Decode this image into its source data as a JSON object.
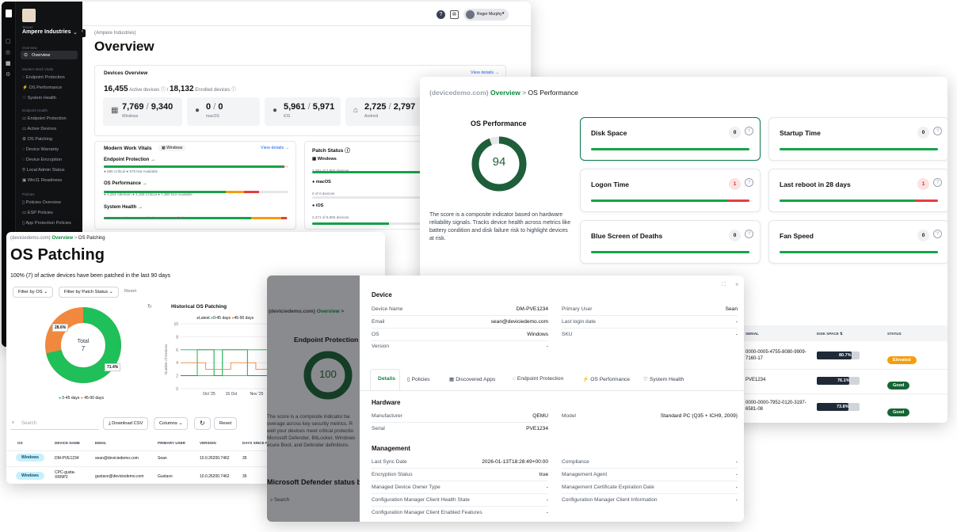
{
  "w1": {
    "tenant_label": "Tenant",
    "tenant": "Ampere Industries",
    "section_overview": "Overview",
    "nav_overview": "Overview",
    "section_vitals": "Modern Work Vitals",
    "nav_vitals": [
      "Endpoint Protection",
      "OS Performance",
      "System Health"
    ],
    "section_health": "Endpoint Health",
    "nav_health": [
      "Endpoint Protection",
      "Active Devices",
      "OS Patching",
      "Device Warranty",
      "Device Encryption",
      "Local Admin Status",
      "Win11 Readiness"
    ],
    "section_policies": "Policies",
    "nav_policies": [
      "Policies Overview",
      "ESP Policies",
      "App Protection Policies"
    ],
    "user": "Roger Murphy",
    "crumb": "(Ampere Industries)",
    "title": "Overview",
    "devices_title": "Devices Overview",
    "view_details": "View details →",
    "active": "16,455",
    "active_label": "Active devices ⓘ /",
    "enrolled": "18,132",
    "enrolled_label": "Enrolled devices ⓘ",
    "stats": [
      {
        "icon": "windows-icon",
        "a": "7,769",
        "b": "9,340",
        "label": "Windows"
      },
      {
        "icon": "apple-icon",
        "a": "0",
        "b": "0",
        "label": "macOS"
      },
      {
        "icon": "apple-icon",
        "a": "5,961",
        "b": "5,971",
        "label": "iOS"
      },
      {
        "icon": "android-icon",
        "a": "2,725",
        "b": "2,797",
        "label": "Android"
      }
    ],
    "vitals_title": "Modern Work Vitals",
    "vitals_filter": "Windows",
    "vitals_details": "View details →",
    "vitals": [
      {
        "name": "Endpoint Protection →",
        "legend": "● 966 Critical  ● 575 Not Available"
      },
      {
        "name": "OS Performance →",
        "legend": "● 4,264 Attention  ● 3,168 Critical  ● 7,360 Not Available"
      },
      {
        "name": "System Health →",
        "legend": "● 2,821 Attention  ● 424 Critical  ● 207 Not Available"
      }
    ],
    "patch_title": "Patch Status ⓘ",
    "patch": [
      {
        "os": "Windows",
        "sub": "7,791 of 7,804 devices",
        "frac": 0.998
      },
      {
        "os": "macOS",
        "sub": "0 of 0 devices",
        "frac": 0
      },
      {
        "os": "iOS",
        "sub": "2,471 of 5,965 devices",
        "frac": 0.41
      }
    ]
  },
  "w2": {
    "crumb_tenant": "(devicedemo.com)",
    "crumb_overview": "Overview",
    "crumb_sep": ">",
    "crumb_page": "OS Performance",
    "gauge_title": "OS Performance",
    "score": "94",
    "score_frac": 0.94,
    "desc": "The score is a composite indicator based on hardware reliability signals. Tracks device health across metrics like battery condition and disk failure risk to highlight devices at risk.",
    "metrics": [
      {
        "name": "Disk Space",
        "count": "0",
        "red": false
      },
      {
        "name": "Startup Time",
        "count": "0",
        "red": false
      },
      {
        "name": "Logon Time",
        "count": "1",
        "red": true
      },
      {
        "name": "Last reboot in 28 days",
        "count": "1",
        "red": true
      },
      {
        "name": "Blue Screen of Deaths",
        "count": "0",
        "red": false
      },
      {
        "name": "Fan Speed",
        "count": "0",
        "red": false
      }
    ],
    "col_serial": "SERIAL",
    "col_disk": "DISK SPACE ⇅",
    "col_status": "STATUS",
    "rows": [
      {
        "serial": "0000-0005-4755-8080-9909-7160-17",
        "disk": "80.7%",
        "disk_frac": 0.807,
        "status": "Elevated",
        "color": "#f59e0b"
      },
      {
        "serial": "PVE1234",
        "disk": "76.1%",
        "disk_frac": 0.761,
        "status": "Good",
        "color": "#166534"
      },
      {
        "serial": "0000-0000-7952-0120-3197-6581-08",
        "disk": "73.8%",
        "disk_frac": 0.738,
        "status": "Good",
        "color": "#166534"
      }
    ]
  },
  "w3": {
    "crumb_tenant": "(deviciedemo.com)",
    "crumb_overview": "Overview",
    "crumb_sep": ">",
    "crumb_page": "OS Patching",
    "title": "OS Patching",
    "summary": "100% (7) of active devices have been patched in the last 90 days",
    "filter_os": "Filter by OS ⌄",
    "filter_status": "Filter by Patch Status ⌄",
    "reset": "Reset",
    "donut_total_label": "Total",
    "donut_total": "7",
    "donut_outer": "28.6%",
    "donut_inner": "71.4%",
    "donut_legend_a": "0-45 days",
    "donut_legend_b": "45-90 days",
    "chart_title": "Historical OS Patching",
    "legend_latest": "Latest",
    "legend_a": "0-45 days",
    "legend_b": "45-90 days",
    "ylabel": "Number of Devices",
    "yticks": [
      "10",
      "8",
      "6",
      "4",
      "2",
      "0"
    ],
    "xticks": [
      "Oct '25",
      "15 Oct",
      "Nov '25"
    ],
    "search": "Search",
    "download": "⤓ Download CSV",
    "columns": "Columns ⌄",
    "reset2": "Reset",
    "headers": [
      "OS",
      "DEVICE NAME",
      "EMAIL",
      "PRIMARY USER",
      "VERSION",
      "DAYS SINCE P"
    ],
    "rows": [
      {
        "os": "Windows",
        "device": "DM-PVE1234",
        "email": "sean@deviciedemo.com",
        "user": "Sean",
        "version": "10.0.26200.7462",
        "days": "35"
      },
      {
        "os": "Windows",
        "device": "CPC-gusta-XRNP2",
        "email": "gustavo@deviciedemo.com",
        "user": "Gustavo",
        "version": "10.0.26200.7462",
        "days": "35"
      }
    ]
  },
  "chart_data": {
    "type": "line",
    "title": "Historical OS Patching",
    "ylabel": "Number of Devices",
    "ylim": [
      0,
      10
    ],
    "xticks": [
      "Oct '25",
      "15 Oct",
      "Nov '25"
    ],
    "series": [
      {
        "name": "Latest",
        "values": [
          2,
          2,
          6,
          6,
          2,
          6,
          6,
          6,
          2,
          2,
          2,
          6
        ]
      },
      {
        "name": "0-45 days",
        "values": [
          6,
          6,
          2,
          2,
          6,
          2,
          2,
          2,
          6,
          6,
          6,
          2
        ]
      },
      {
        "name": "45-90 days",
        "values": [
          4,
          4,
          4,
          3,
          3,
          3,
          4,
          4,
          4,
          3,
          3,
          3
        ]
      }
    ]
  },
  "w4": {
    "bg_crumb_tenant": "(deviciedemo.com)",
    "bg_crumb_overview": "Overview",
    "bg_title": "Endpoint Protection",
    "bg_score": "100",
    "bg_desc": "The score is a composite indicator ba overage across key security metrics. R well your devices meet critical protectio Microsoft Defender, BitLocker, Windows ecure Boot, and Defender definitions.",
    "bg_defender": "Microsoft Defender status b",
    "bg_search": "Search",
    "device_title": "Device",
    "device_left": [
      [
        "Device Name",
        "DM-PVE1234"
      ],
      [
        "Email",
        "sean@deviciedemo.com"
      ],
      [
        "OS",
        "Windows"
      ],
      [
        "Version",
        "-"
      ]
    ],
    "device_right": [
      [
        "Primary User",
        "Sean"
      ],
      [
        "Last login date",
        "-"
      ],
      [
        "SKU",
        "-"
      ]
    ],
    "tabs": [
      "Details",
      "Policies",
      "Discovered Apps",
      "Endpoint Protection",
      "OS Performance",
      "System Health"
    ],
    "hardware_title": "Hardware",
    "hw_left": [
      [
        "Manufacturer",
        "QEMU"
      ],
      [
        "Serial",
        "PVE1234"
      ]
    ],
    "hw_right": [
      [
        "Model",
        "Standard PC (Q35 + ICH9, 2009)"
      ]
    ],
    "mgmt_title": "Management",
    "mg_left": [
      [
        "Last Sync Date",
        "2026-01-13T18:28:49+00:00"
      ],
      [
        "Encryption Status",
        "true"
      ],
      [
        "Managed Device Owner Type",
        "-"
      ],
      [
        "Configuration Manager Client Health State",
        "-"
      ],
      [
        "Configuration Manager Client Enabled Features",
        "-"
      ]
    ],
    "mg_right": [
      [
        "Compliance",
        "-"
      ],
      [
        "Management Agent",
        "-"
      ],
      [
        "Management Certificate Expiration Date",
        "-"
      ],
      [
        "Configuration Manager Client Information",
        "-"
      ]
    ]
  }
}
